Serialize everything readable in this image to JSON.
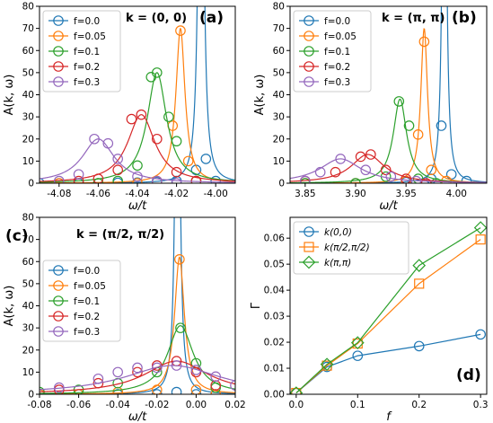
{
  "colors": {
    "f0": "#1f77b4",
    "f05": "#ff7f0e",
    "f1": "#2ca02c",
    "f2": "#d62728",
    "f3": "#9467bd"
  },
  "chart_data": [
    {
      "type": "line",
      "panel": "a",
      "label": "(a)",
      "annotation": "k = (0, 0)",
      "xlabel": "ω/t",
      "ylabel": "A(k, ω)",
      "xlim": [
        -4.09,
        -3.99
      ],
      "ylim": [
        0,
        80
      ],
      "xticks": [
        "-4.08",
        "-4.06",
        "-4.04",
        "-4.02",
        "-4.00"
      ],
      "xtick_values": [
        -4.08,
        -4.06,
        -4.04,
        -4.02,
        -4.0
      ],
      "yticks": [
        "0",
        "10",
        "20",
        "30",
        "40",
        "50",
        "60",
        "70",
        "80"
      ],
      "ytick_values": [
        0,
        10,
        20,
        30,
        40,
        50,
        60,
        70,
        80
      ],
      "legend_position": "top-left",
      "series": [
        {
          "name": "f=0.0",
          "color": "#1f77b4",
          "peak": -4.0075,
          "width": 0.0012,
          "height": 300,
          "points": [
            [
              -4.09,
              0
            ],
            [
              -4.08,
              0
            ],
            [
              -4.07,
              0
            ],
            [
              -4.06,
              0
            ],
            [
              -4.05,
              0.2
            ],
            [
              -4.04,
              0.3
            ],
            [
              -4.03,
              0.5
            ],
            [
              -4.02,
              1
            ],
            [
              -4.01,
              6
            ],
            [
              -4.005,
              11
            ],
            [
              -4.0,
              1
            ]
          ]
        },
        {
          "name": "f=0.05",
          "color": "#ff7f0e",
          "peak": -4.018,
          "width": 0.0028,
          "height": 70,
          "points": [
            [
              -4.08,
              0
            ],
            [
              -4.06,
              0
            ],
            [
              -4.04,
              0
            ],
            [
              -4.03,
              1
            ],
            [
              -4.022,
              26
            ],
            [
              -4.018,
              69
            ],
            [
              -4.014,
              10
            ],
            [
              -4.01,
              1
            ]
          ]
        },
        {
          "name": "f=0.1",
          "color": "#2ca02c",
          "peak": -4.03,
          "width": 0.006,
          "height": 50,
          "points": [
            [
              -4.06,
              0
            ],
            [
              -4.05,
              1
            ],
            [
              -4.04,
              8
            ],
            [
              -4.033,
              48
            ],
            [
              -4.03,
              50
            ],
            [
              -4.024,
              30
            ],
            [
              -4.02,
              19
            ],
            [
              -4.01,
              1
            ]
          ]
        },
        {
          "name": "f=0.2",
          "color": "#d62728",
          "peak": -4.038,
          "width": 0.0085,
          "height": 31,
          "points": [
            [
              -4.07,
              1
            ],
            [
              -4.06,
              2
            ],
            [
              -4.05,
              6
            ],
            [
              -4.043,
              29
            ],
            [
              -4.038,
              31
            ],
            [
              -4.03,
              20
            ],
            [
              -4.02,
              5
            ],
            [
              -4.01,
              1
            ]
          ]
        },
        {
          "name": "f=0.3",
          "color": "#9467bd",
          "peak": -4.06,
          "width": 0.01,
          "height": 20,
          "points": [
            [
              -4.08,
              1
            ],
            [
              -4.07,
              4
            ],
            [
              -4.062,
              20
            ],
            [
              -4.055,
              18
            ],
            [
              -4.05,
              11
            ],
            [
              -4.04,
              3
            ],
            [
              -4.03,
              1
            ],
            [
              -4.02,
              0
            ]
          ]
        }
      ]
    },
    {
      "type": "line",
      "panel": "b",
      "label": "(b)",
      "annotation": "k = (π, π)",
      "xlabel": "ω/t",
      "ylabel": "A(k, ω)",
      "xlim": [
        3.835,
        4.03
      ],
      "ylim": [
        0,
        80
      ],
      "xticks": [
        "3.85",
        "3.90",
        "3.95",
        "4.00"
      ],
      "xtick_values": [
        3.85,
        3.9,
        3.95,
        4.0
      ],
      "yticks": [
        "0",
        "10",
        "20",
        "30",
        "40",
        "50",
        "60",
        "70",
        "80"
      ],
      "ytick_values": [
        0,
        10,
        20,
        30,
        40,
        50,
        60,
        70,
        80
      ],
      "legend_position": "top-left",
      "series": [
        {
          "name": "f=0.0",
          "color": "#1f77b4",
          "peak": 3.988,
          "width": 0.0018,
          "height": 300,
          "points": [
            [
              3.85,
              0
            ],
            [
              3.9,
              0
            ],
            [
              3.95,
              0.5
            ],
            [
              3.975,
              2
            ],
            [
              3.985,
              26
            ],
            [
              3.995,
              4
            ],
            [
              4.01,
              1
            ]
          ]
        },
        {
          "name": "f=0.05",
          "color": "#ff7f0e",
          "peak": 3.968,
          "width": 0.004,
          "height": 70,
          "points": [
            [
              3.85,
              0
            ],
            [
              3.9,
              0
            ],
            [
              3.95,
              1
            ],
            [
              3.962,
              22
            ],
            [
              3.968,
              64
            ],
            [
              3.975,
              6
            ],
            [
              3.99,
              1
            ]
          ]
        },
        {
          "name": "f=0.1",
          "color": "#2ca02c",
          "peak": 3.944,
          "width": 0.008,
          "height": 38,
          "points": [
            [
              3.85,
              0
            ],
            [
              3.9,
              0
            ],
            [
              3.93,
              3
            ],
            [
              3.943,
              37
            ],
            [
              3.953,
              26
            ],
            [
              3.962,
              2
            ],
            [
              3.98,
              0
            ]
          ]
        },
        {
          "name": "f=0.2",
          "color": "#d62728",
          "peak": 3.912,
          "width": 0.02,
          "height": 13,
          "points": [
            [
              3.85,
              1
            ],
            [
              3.88,
              5
            ],
            [
              3.905,
              12
            ],
            [
              3.915,
              13
            ],
            [
              3.93,
              6
            ],
            [
              3.95,
              2
            ],
            [
              3.97,
              0
            ]
          ]
        },
        {
          "name": "f=0.3",
          "color": "#9467bd",
          "peak": 3.885,
          "width": 0.025,
          "height": 11,
          "points": [
            [
              3.85,
              1
            ],
            [
              3.865,
              5
            ],
            [
              3.885,
              11
            ],
            [
              3.91,
              6
            ],
            [
              3.935,
              3
            ],
            [
              3.96,
              1
            ]
          ]
        }
      ]
    },
    {
      "type": "line",
      "panel": "c",
      "label": "(c)",
      "annotation": "k = (π/2, π/2)",
      "xlabel": "ω/t",
      "ylabel": "A(k, ω)",
      "xlim": [
        -0.08,
        0.02
      ],
      "ylim": [
        0,
        80
      ],
      "xticks": [
        "-0.08",
        "-0.06",
        "-0.04",
        "-0.02",
        "0.00",
        "0.02"
      ],
      "xtick_values": [
        -0.08,
        -0.06,
        -0.04,
        -0.02,
        0.0,
        0.02
      ],
      "yticks": [
        "0",
        "10",
        "20",
        "30",
        "40",
        "50",
        "60",
        "70",
        "80"
      ],
      "ytick_values": [
        0,
        10,
        20,
        30,
        40,
        50,
        60,
        70,
        80
      ],
      "legend_position": "center-left",
      "series": [
        {
          "name": "f=0.0",
          "color": "#1f77b4",
          "peak": -0.0095,
          "width": 0.001,
          "height": 300,
          "points": [
            [
              -0.08,
              0
            ],
            [
              -0.06,
              0
            ],
            [
              -0.04,
              0
            ],
            [
              -0.02,
              0
            ],
            [
              -0.01,
              1
            ],
            [
              0.0,
              0
            ],
            [
              0.01,
              0
            ]
          ]
        },
        {
          "name": "f=0.05",
          "color": "#ff7f0e",
          "peak": -0.0085,
          "width": 0.003,
          "height": 62,
          "points": [
            [
              -0.08,
              0
            ],
            [
              -0.06,
              0
            ],
            [
              -0.04,
              1
            ],
            [
              -0.02,
              2
            ],
            [
              -0.0085,
              61
            ],
            [
              0.0,
              2
            ],
            [
              0.01,
              0
            ]
          ]
        },
        {
          "name": "f=0.1",
          "color": "#2ca02c",
          "peak": -0.008,
          "width": 0.008,
          "height": 31,
          "points": [
            [
              -0.08,
              1
            ],
            [
              -0.06,
              2
            ],
            [
              -0.04,
              5
            ],
            [
              -0.02,
              10
            ],
            [
              -0.008,
              30
            ],
            [
              0.0,
              14
            ],
            [
              0.01,
              3
            ]
          ]
        },
        {
          "name": "f=0.2",
          "color": "#d62728",
          "peak": -0.01,
          "width": 0.02,
          "height": 15,
          "points": [
            [
              -0.07,
              2
            ],
            [
              -0.05,
              5
            ],
            [
              -0.03,
              10
            ],
            [
              -0.02,
              13
            ],
            [
              -0.01,
              15
            ],
            [
              0.0,
              10
            ],
            [
              0.01,
              4
            ]
          ]
        },
        {
          "name": "f=0.3",
          "color": "#9467bd",
          "peak": -0.012,
          "width": 0.03,
          "height": 13,
          "points": [
            [
              -0.07,
              3
            ],
            [
              -0.05,
              7
            ],
            [
              -0.04,
              10
            ],
            [
              -0.03,
              12
            ],
            [
              -0.02,
              12
            ],
            [
              -0.01,
              13
            ],
            [
              0.0,
              11
            ],
            [
              0.01,
              8
            ],
            [
              0.02,
              4
            ]
          ]
        }
      ]
    },
    {
      "type": "line",
      "panel": "d",
      "label": "(d)",
      "xlabel": "f",
      "ylabel": "Γ",
      "xlim": [
        -0.01,
        0.31
      ],
      "ylim": [
        0,
        0.068
      ],
      "xticks": [
        "0.0",
        "0.1",
        "0.2",
        "0.3"
      ],
      "xtick_values": [
        0,
        0.1,
        0.2,
        0.3
      ],
      "yticks": [
        "0.00",
        "0.01",
        "0.02",
        "0.03",
        "0.04",
        "0.05",
        "0.06"
      ],
      "ytick_values": [
        0,
        0.01,
        0.02,
        0.03,
        0.04,
        0.05,
        0.06
      ],
      "legend_position": "top-left",
      "x": [
        0.0,
        0.05,
        0.1,
        0.2,
        0.3
      ],
      "series": [
        {
          "name": "k(0,0)",
          "color": "#1f77b4",
          "marker": "circle",
          "values": [
            0.0005,
            0.0105,
            0.0148,
            0.0185,
            0.023
          ]
        },
        {
          "name": "k(π/2,π/2)",
          "color": "#ff7f0e",
          "marker": "square",
          "values": [
            0.0005,
            0.011,
            0.0195,
            0.0425,
            0.0595
          ]
        },
        {
          "name": "k(π,π)",
          "color": "#2ca02c",
          "marker": "diamond",
          "values": [
            0.0005,
            0.0115,
            0.0198,
            0.0495,
            0.064
          ]
        }
      ]
    }
  ]
}
